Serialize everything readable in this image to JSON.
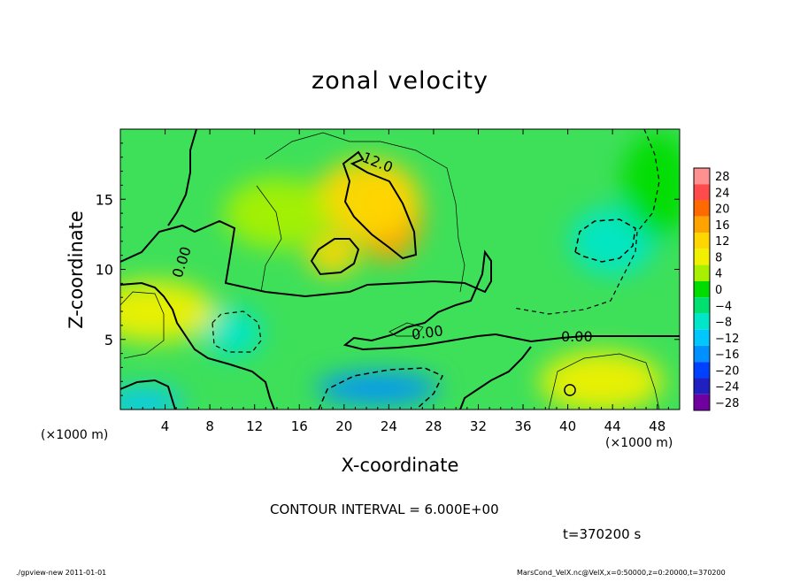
{
  "chart_data": {
    "type": "heatmap",
    "title": "zonal velocity",
    "xlabel": "X-coordinate",
    "ylabel": "Z-coordinate",
    "x_unit_label": "(×1000 m)",
    "xlim": [
      0,
      50
    ],
    "ylim": [
      0,
      20
    ],
    "x_ticks": [
      "4",
      "8",
      "12",
      "16",
      "20",
      "24",
      "28",
      "32",
      "36",
      "40",
      "44",
      "48"
    ],
    "y_ticks": [
      "5",
      "10",
      "15"
    ],
    "colorbar_labels": [
      "28",
      "24",
      "20",
      "16",
      "12",
      "8",
      "4",
      "0",
      "−4",
      "−8",
      "−12",
      "−16",
      "−20",
      "−24",
      "−28"
    ],
    "colorbar_colors": [
      "#ff9090",
      "#ff4b4b",
      "#ff6a00",
      "#ffa300",
      "#ffd700",
      "#f0f000",
      "#a8f000",
      "#00dc00",
      "#00e070",
      "#00e6c8",
      "#00c8ff",
      "#0090ff",
      "#0040ff",
      "#2020c0",
      "#7000a0"
    ],
    "contour_labels": [
      "12.0",
      "0.00",
      "0.00",
      "0.00"
    ],
    "contour_interval": "CONTOUR INTERVAL = 6.000E+00",
    "time_label": "t=370200 s",
    "value_blobs": [
      {
        "x": 24,
        "z": 14,
        "value": 16
      },
      {
        "x": 19,
        "z": 11,
        "value": 12
      },
      {
        "x": 22,
        "z": 15,
        "value": 10
      },
      {
        "x": 44,
        "z": 12,
        "value": -10
      },
      {
        "x": 23,
        "z": 1.5,
        "value": -18
      },
      {
        "x": 10,
        "z": 5.5,
        "value": -7
      },
      {
        "x": 43,
        "z": 2,
        "value": 7
      },
      {
        "x": 2,
        "z": 0.5,
        "value": -12
      },
      {
        "x": 3,
        "z": 7,
        "value": 7
      },
      {
        "x": 14,
        "z": 14,
        "value": 4
      },
      {
        "x": 48,
        "z": 16,
        "value": -2
      }
    ]
  },
  "footer": {
    "left": "./gpview-new   2011-01-01",
    "right": "MarsCond_VelX.nc@VelX,x=0:50000,z=0:20000,t=370200"
  }
}
